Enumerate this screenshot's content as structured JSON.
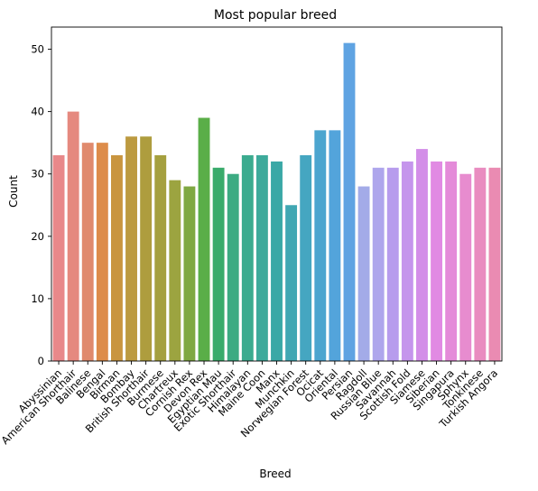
{
  "chart_data": {
    "type": "bar",
    "title": "Most popular breed",
    "xlabel": "Breed",
    "ylabel": "Count",
    "ylim": [
      0,
      53.55
    ],
    "yticks": [
      0,
      10,
      20,
      30,
      40,
      50
    ],
    "grid": false,
    "legend": "none",
    "categories": [
      "Abyssinian",
      "American Shorthair",
      "Balinese",
      "Bengal",
      "Birman",
      "Bombay",
      "British Shorthair",
      "Burmese",
      "Chartreux",
      "Cornish Rex",
      "Devon Rex",
      "Egyptian Mau",
      "Exotic Shorthair",
      "Himalayan",
      "Maine Coon",
      "Manx",
      "Munchkin",
      "Norwegian Forest",
      "Ocicat",
      "Oriental",
      "Persian",
      "Ragdoll",
      "Russian Blue",
      "Savannah",
      "Scottish Fold",
      "Siamese",
      "Siberian",
      "Singapura",
      "Sphynx",
      "Tonkinese",
      "Turkish Angora"
    ],
    "values": [
      33,
      40,
      35,
      35,
      33,
      36,
      36,
      33,
      29,
      28,
      39,
      31,
      30,
      33,
      33,
      32,
      25,
      33,
      37,
      37,
      51,
      28,
      31,
      31,
      32,
      34,
      32,
      32,
      30,
      31,
      31
    ],
    "colors": [
      "#e8888a",
      "#e5897f",
      "#e08a6d",
      "#dd8c4a",
      "#c9953f",
      "#bc9a40",
      "#ae9d3e",
      "#a5a03f",
      "#9ca440",
      "#7fa842",
      "#5aae48",
      "#39ab6b",
      "#3cab82",
      "#3bab8f",
      "#3daa9b",
      "#3aa8a6",
      "#40a7b3",
      "#45a6c1",
      "#4ca5cf",
      "#53a4db",
      "#5fa3e2",
      "#a3abe8",
      "#aea6ec",
      "#b79ced",
      "#c595ec",
      "#d38ee8",
      "#e18ae3",
      "#e48bd9",
      "#e78ccf",
      "#e98cc0",
      "#ea8bb2"
    ]
  }
}
